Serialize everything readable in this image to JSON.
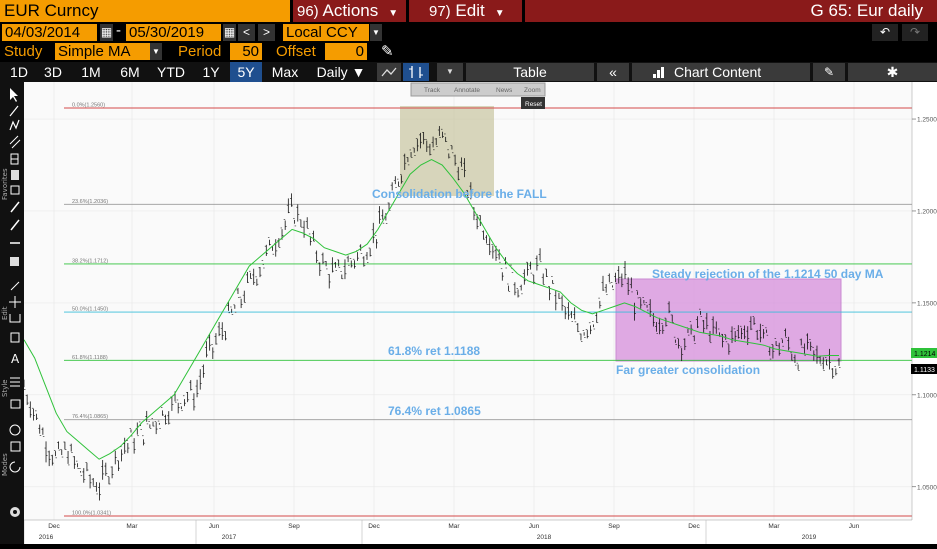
{
  "topbar": {
    "title": "EUR Curncy",
    "actions_num": "96)",
    "actions_label": "Actions",
    "edit_num": "97)",
    "edit_label": "Edit",
    "ticker_label": "G 65: Eur daily"
  },
  "datebar": {
    "start_date": "04/03/2014",
    "end_date": "05/30/2019",
    "currency": "Local CCY"
  },
  "studybar": {
    "study_label": "Study",
    "study_value": "Simple MA",
    "period_label": "Period",
    "period_value": "50",
    "offset_label": "Offset",
    "offset_value": "0"
  },
  "toolbar": {
    "ranges": [
      "1D",
      "3D",
      "1M",
      "6M",
      "YTD",
      "1Y",
      "5Y",
      "Max"
    ],
    "selected_range": "5Y",
    "frequency": "Daily ▼",
    "table_label": "Table",
    "chart_content_label": "Chart Content"
  },
  "chart_toolbar": {
    "track": "Track",
    "annotate": "Annotate",
    "news": "News",
    "zoom": "Zoom",
    "reset": "Reset"
  },
  "left_labels": {
    "favorites": "Favorites",
    "edit": "Edit",
    "style": "Style",
    "modes": "Modes"
  },
  "chart_data": {
    "type": "line",
    "series": [
      {
        "values": [
          1.105,
          1.09,
          1.075,
          1.065,
          1.07,
          1.06,
          1.055,
          1.05,
          1.06,
          1.07,
          1.075,
          1.08,
          1.085,
          1.09,
          1.095,
          1.1,
          1.1,
          1.12,
          1.13,
          1.14,
          1.15,
          1.16,
          1.17,
          1.18,
          1.19,
          1.2,
          1.195,
          1.18,
          1.17,
          1.165,
          1.17,
          1.175,
          1.18,
          1.19,
          1.2,
          1.22,
          1.235,
          1.24,
          1.235,
          1.24,
          1.23,
          1.22,
          1.2,
          1.19,
          1.18,
          1.165,
          1.16,
          1.165,
          1.17,
          1.16,
          1.15,
          1.14,
          1.135,
          1.14,
          1.155,
          1.16,
          1.165,
          1.15,
          1.145,
          1.14,
          1.145,
          1.13,
          1.13,
          1.14,
          1.135,
          1.13,
          1.13,
          1.135,
          1.14,
          1.13,
          1.125,
          1.13,
          1.12,
          1.125,
          1.12,
          1.12,
          1.115
        ]
      },
      {
        "name": "50 day MA",
        "values": [
          1.13,
          1.12,
          1.105,
          1.09,
          1.08,
          1.075,
          1.07,
          1.065,
          1.068,
          1.072,
          1.078,
          1.085,
          1.09,
          1.095,
          1.1,
          1.11,
          1.12,
          1.13,
          1.14,
          1.15,
          1.16,
          1.17,
          1.175,
          1.18,
          1.185,
          1.19,
          1.188,
          1.185,
          1.18,
          1.178,
          1.176,
          1.178,
          1.182,
          1.19,
          1.2,
          1.21,
          1.22,
          1.225,
          1.228,
          1.225,
          1.218,
          1.21,
          1.2,
          1.19,
          1.18,
          1.172,
          1.166,
          1.162,
          1.16,
          1.158,
          1.156,
          1.15,
          1.146,
          1.144,
          1.146,
          1.148,
          1.15,
          1.148,
          1.145,
          1.142,
          1.14,
          1.138,
          1.136,
          1.134,
          1.133,
          1.132,
          1.13,
          1.129,
          1.128,
          1.127,
          1.125,
          1.124,
          1.123,
          1.122,
          1.121,
          1.1214,
          1.1214
        ]
      }
    ],
    "x_tick_labels": [
      "Dec",
      "Mar",
      "Jun",
      "Sep",
      "Dec",
      "Mar",
      "Jun",
      "Sep",
      "Dec",
      "Mar",
      "Jun"
    ],
    "year_labels": [
      "2016",
      "2017",
      "2018",
      "2019"
    ],
    "y_tick_labels": [
      "1.2500",
      "1.2000",
      "1.1500",
      "1.1000",
      "1.0500"
    ],
    "ylim": [
      1.0341,
      1.256
    ],
    "price_tags": [
      "1.1214",
      "1.1133"
    ],
    "colors": {
      "price": "#000000",
      "ma": "#2fc23a",
      "fib_line": "#9a9a9a",
      "fib_green": "#2fc23a",
      "fib_cyan": "#38bdd8",
      "fib_red": "#d44a4a",
      "rect1": "#c8c4a0",
      "rect2": "#d68fdc"
    },
    "fib_levels": [
      {
        "label": "0.0%(1.2560)",
        "value": 1.256,
        "color": "red"
      },
      {
        "label": "23.6%(1.2036)",
        "value": 1.2036,
        "color": "gray"
      },
      {
        "label": "38.2%(1.1712)",
        "value": 1.1712,
        "color": "green"
      },
      {
        "label": "50.0%(1.1450)",
        "value": 1.145,
        "color": "cyan"
      },
      {
        "label": "61.8%(1.1188)",
        "value": 1.1188,
        "color": "green"
      },
      {
        "label": "76.4%(1.0865)",
        "value": 1.0865,
        "color": "gray"
      },
      {
        "label": "100.0%(1.0341)",
        "value": 1.0341,
        "color": "red"
      }
    ],
    "annotations": [
      "Consolidation before the FALL",
      "Steady rejection of the 1.1214 50 day MA",
      "61.8% ret 1.1188",
      "Far greater consolidation",
      "76.4% ret 1.0865"
    ]
  }
}
